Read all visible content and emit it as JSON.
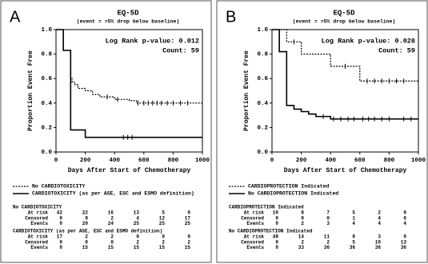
{
  "chart_data": [
    {
      "type": "step",
      "panel": "A",
      "title": "EQ-5D",
      "subtitle": "(event = >5% drop below baseline)",
      "annotations": [
        "Log Rank p-value: 0.012",
        "Count: 59"
      ],
      "x_label": "Days After Start of Chemotherapy",
      "y_label": "Proportion Event Free",
      "xlim": [
        0,
        1000
      ],
      "xticks": [
        0,
        200,
        400,
        600,
        800,
        1000
      ],
      "ylim": [
        0,
        1
      ],
      "yticks": [
        {
          "value": 0,
          "label": "0.0"
        },
        0.2,
        0.4,
        0.6,
        0.8,
        {
          "value": 1,
          "label": "1.0"
        }
      ],
      "series": [
        {
          "name": "No CARDIOTOXICITY",
          "color": "#000000",
          "dash": "dotted",
          "x": [
            0,
            50,
            100,
            110,
            130,
            150,
            200,
            250,
            300,
            400,
            500,
            550,
            1000
          ],
          "values": [
            1,
            0.83,
            0.6,
            0.57,
            0.55,
            0.52,
            0.5,
            0.47,
            0.45,
            0.43,
            0.42,
            0.4,
            0.4
          ],
          "censored_x": [
            350,
            420,
            560,
            600,
            630,
            660,
            690,
            720,
            760,
            800,
            850,
            900,
            1000
          ],
          "censored_y": [
            0.45,
            0.43,
            0.4,
            0.4,
            0.4,
            0.4,
            0.4,
            0.4,
            0.4,
            0.4,
            0.4,
            0.4,
            0.4
          ]
        },
        {
          "name": "CARDIOTOXICITY (as per ASE, ESC and ESMO definition)",
          "color": "#000000",
          "dash": "solid",
          "x": [
            0,
            50,
            100,
            200,
            1000
          ],
          "values": [
            1,
            0.83,
            0.18,
            0.12,
            0.12
          ],
          "censored_x": [
            460,
            490,
            520
          ],
          "censored_y": [
            0.12,
            0.12,
            0.12
          ]
        }
      ],
      "risk_tables": [
        {
          "title": "No CARDIOTOXICITY",
          "rows": [
            {
              "label": "At risk",
              "values": [
                42,
                22,
                16,
                13,
                5,
                0
              ]
            },
            {
              "label": "Censored",
              "values": [
                0,
                0,
                2,
                4,
                12,
                17
              ]
            },
            {
              "label": "Events",
              "values": [
                0,
                20,
                24,
                25,
                25,
                25
              ]
            }
          ]
        },
        {
          "title": "CARDIOTOXICITY (as per ASE, ESC and ESMO definition)",
          "rows": [
            {
              "label": "At risk",
              "values": [
                17,
                2,
                2,
                0,
                0,
                0
              ]
            },
            {
              "label": "Censored",
              "values": [
                0,
                0,
                0,
                2,
                2,
                2
              ]
            },
            {
              "label": "Events",
              "values": [
                0,
                15,
                15,
                15,
                15,
                15
              ]
            }
          ]
        }
      ]
    },
    {
      "type": "step",
      "panel": "B",
      "title": "EQ-5D",
      "subtitle": "(event = >5% drop below baseline)",
      "annotations": [
        "Log Rank p-value: 0.028",
        "Count: 59"
      ],
      "x_label": "Days After Start of Chemotherapy",
      "y_label": "Proportion Event Free",
      "xlim": [
        0,
        1000
      ],
      "xticks": [
        0,
        200,
        400,
        600,
        800,
        1000
      ],
      "ylim": [
        0,
        1
      ],
      "yticks": [
        {
          "value": 0,
          "label": "0.0"
        },
        0.2,
        0.4,
        0.6,
        0.8,
        {
          "value": 1,
          "label": "1.0"
        }
      ],
      "series": [
        {
          "name": "CARDIOPROTECTION Indicated",
          "color": "#000000",
          "dash": "dotted",
          "x": [
            0,
            100,
            200,
            400,
            600,
            1000
          ],
          "values": [
            1,
            0.9,
            0.8,
            0.7,
            0.58,
            0.58
          ],
          "censored_x": [
            150,
            500,
            650,
            700,
            750,
            800,
            850,
            900,
            1000
          ],
          "censored_y": [
            0.9,
            0.7,
            0.58,
            0.58,
            0.58,
            0.58,
            0.58,
            0.58,
            0.58
          ]
        },
        {
          "name": "No CARDIOPROTECTION Indicated",
          "color": "#000000",
          "dash": "solid",
          "x": [
            0,
            50,
            100,
            150,
            200,
            250,
            300,
            400,
            1000
          ],
          "values": [
            1,
            0.82,
            0.38,
            0.35,
            0.33,
            0.31,
            0.29,
            0.27,
            0.27
          ],
          "censored_x": [
            350,
            420,
            470,
            520,
            560,
            620,
            660,
            700,
            750,
            800,
            900,
            950
          ],
          "censored_y": [
            0.29,
            0.27,
            0.27,
            0.27,
            0.27,
            0.27,
            0.27,
            0.27,
            0.27,
            0.27,
            0.27,
            0.27
          ]
        }
      ],
      "risk_tables": [
        {
          "title": "CARDIOPROTECTION Indicated",
          "rows": [
            {
              "label": "At risk",
              "values": [
                10,
                8,
                7,
                5,
                2,
                0
              ]
            },
            {
              "label": "Censored",
              "values": [
                0,
                0,
                0,
                1,
                4,
                6
              ]
            },
            {
              "label": "Events",
              "values": [
                0,
                2,
                3,
                4,
                4,
                4
              ]
            }
          ]
        },
        {
          "title": "No CARDIOPROTECTION Indicated",
          "rows": [
            {
              "label": "At risk",
              "values": [
                49,
                14,
                11,
                8,
                3,
                0
              ]
            },
            {
              "label": "Censored",
              "values": [
                0,
                2,
                2,
                5,
                10,
                13
              ]
            },
            {
              "label": "Events",
              "values": [
                0,
                33,
                36,
                36,
                36,
                36
              ]
            }
          ]
        }
      ]
    }
  ]
}
